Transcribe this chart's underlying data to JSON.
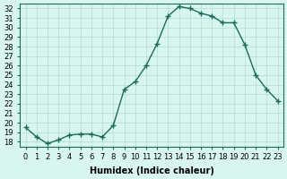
{
  "x": [
    0,
    1,
    2,
    3,
    4,
    5,
    6,
    7,
    8,
    9,
    10,
    11,
    12,
    13,
    14,
    15,
    16,
    17,
    18,
    19,
    20,
    21,
    22,
    23
  ],
  "y": [
    19.5,
    18.5,
    17.8,
    18.2,
    18.7,
    18.8,
    18.8,
    18.5,
    19.7,
    23.5,
    24.3,
    26.0,
    28.3,
    31.2,
    32.2,
    32.0,
    31.5,
    31.2,
    30.5,
    30.5,
    28.2,
    25.0,
    23.5,
    22.3
  ],
  "line_color": "#1a6b5a",
  "marker": "+",
  "background_color": "#d8f5f0",
  "grid_color": "#b0ddd6",
  "xlabel": "Humidex (Indice chaleur)",
  "ylim": [
    17.5,
    32.5
  ],
  "xlim": [
    -0.5,
    23.5
  ],
  "yticks": [
    18,
    19,
    20,
    21,
    22,
    23,
    24,
    25,
    26,
    27,
    28,
    29,
    30,
    31,
    32
  ],
  "xticks": [
    0,
    1,
    2,
    3,
    4,
    5,
    6,
    7,
    8,
    9,
    10,
    11,
    12,
    13,
    14,
    15,
    16,
    17,
    18,
    19,
    20,
    21,
    22,
    23
  ],
  "xtick_labels": [
    "0",
    "1",
    "2",
    "3",
    "4",
    "5",
    "6",
    "7",
    "8",
    "9",
    "10",
    "11",
    "12",
    "13",
    "14",
    "15",
    "16",
    "17",
    "18",
    "19",
    "20",
    "21",
    "22",
    "23"
  ],
  "title_fontsize": 6,
  "label_fontsize": 7,
  "tick_fontsize": 6
}
